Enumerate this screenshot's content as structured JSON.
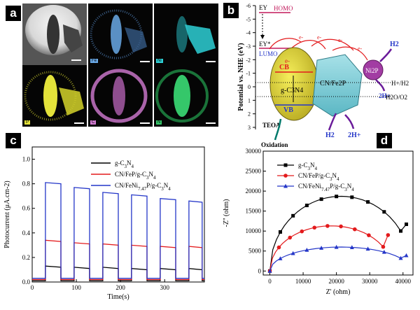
{
  "panel_a": {
    "letter": "a",
    "tiles": [
      {
        "label": "",
        "color": "#cccccc"
      },
      {
        "label": "Fe",
        "color": "#6aa9e6"
      },
      {
        "label": "Ni",
        "color": "#2ed0d6"
      },
      {
        "label": "P",
        "color": "#e3e23a"
      },
      {
        "label": "C",
        "color": "#d27bd2"
      },
      {
        "label": "N",
        "color": "#35c76a"
      }
    ]
  },
  "panel_b": {
    "letter": "b",
    "axis_label": "Potential vs. NHE (eV)",
    "ticks": [
      "-6",
      "-5",
      "-4",
      "-3",
      "-2",
      "-1",
      "0",
      "1",
      "2",
      "3"
    ],
    "ey": "EY",
    "homo": "HOMO",
    "ey_star": "EY*",
    "lumo": "LUMO",
    "cb": "CB",
    "vb": "VB",
    "gc3n4": "g-C3N4",
    "cnfe2p": "CN/Fe2P",
    "ni2p": "Ni2P",
    "h2": "H2",
    "h_plus": "2H+",
    "h_h2": "H+/H2",
    "h2o_o2": "H2O/O2",
    "teoa": "TEOA",
    "oxidation": "Oxidation",
    "electron": "e-"
  },
  "chart_data": [
    {
      "type": "line",
      "panel": "c",
      "xlabel": "Time(s)",
      "ylabel": "Photocurrent (μA.cm-2)",
      "xlim": [
        0,
        390
      ],
      "ylim": [
        0,
        1.1
      ],
      "xticks": [
        0,
        100,
        200,
        300
      ],
      "yticks": [
        0.0,
        0.2,
        0.4,
        0.6,
        0.8,
        1.0
      ],
      "light_on_periods": [
        [
          30,
          65
        ],
        [
          95,
          130
        ],
        [
          160,
          195
        ],
        [
          225,
          260
        ],
        [
          290,
          325
        ],
        [
          355,
          385
        ]
      ],
      "series": [
        {
          "name": "g-C3N4",
          "color": "#000000",
          "on_values": [
            0.12,
            0.11,
            0.11,
            0.1,
            0.1,
            0.1
          ],
          "dark": 0.01
        },
        {
          "name": "CN/FeP/g-C3N4",
          "color": "#e31a1c",
          "on_values": [
            0.33,
            0.31,
            0.3,
            0.29,
            0.28,
            0.28
          ],
          "dark": 0.02
        },
        {
          "name": "CN/FeNi7.47P/g-C3N4",
          "color": "#2436c8",
          "on_values": [
            0.8,
            0.76,
            0.72,
            0.7,
            0.67,
            0.65
          ],
          "dark": 0.03
        }
      ]
    },
    {
      "type": "scatter",
      "panel": "d",
      "xlabel": "Z' (ohm)",
      "ylabel": "-Z'' (ohm)",
      "xlim": [
        -2000,
        43000
      ],
      "ylim": [
        -1000,
        30000
      ],
      "xticks": [
        0,
        10000,
        20000,
        30000,
        40000
      ],
      "yticks": [
        0,
        5000,
        10000,
        15000,
        20000,
        25000,
        30000
      ],
      "series": [
        {
          "name": "g-C3N4",
          "color": "#000000",
          "marker": "square",
          "end_x": 41000,
          "end_y": 11700,
          "peak": 18700
        },
        {
          "name": "CN/FeP/g-C3N4",
          "color": "#e31a1c",
          "marker": "circle",
          "end_x": 35500,
          "end_y": 9000,
          "peak": 11300
        },
        {
          "name": "CN/FeNi7.47P/g-C3N4",
          "color": "#2436c8",
          "marker": "triangle",
          "end_x": 41000,
          "end_y": 3900,
          "peak": 6000
        }
      ]
    }
  ]
}
